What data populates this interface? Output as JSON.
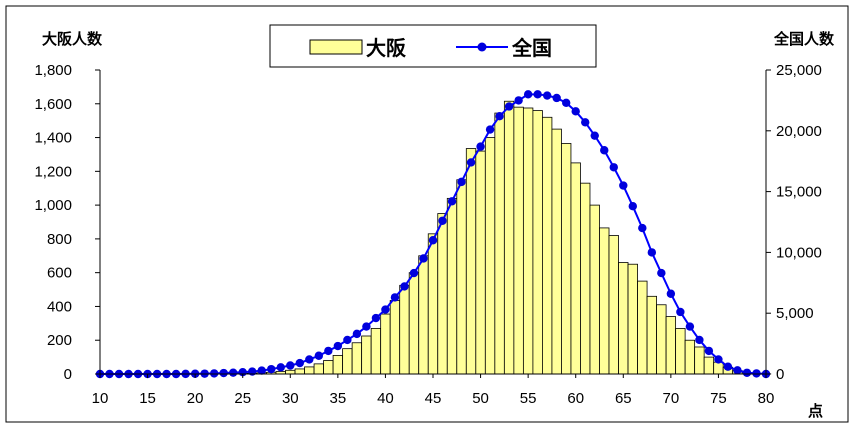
{
  "chart_data": {
    "type": "bar",
    "left_axis_label": "大阪人数",
    "right_axis_label": "全国人数",
    "x_unit": "点",
    "x_ticks": [
      10,
      15,
      20,
      25,
      30,
      35,
      40,
      45,
      50,
      55,
      60,
      65,
      70,
      75,
      80
    ],
    "x_range": [
      10,
      80
    ],
    "y_left_ticks": [
      "0",
      "200",
      "400",
      "600",
      "800",
      "1,000",
      "1,200",
      "1,400",
      "1,600",
      "1,800"
    ],
    "y_left_range": [
      0,
      1800
    ],
    "y_right_ticks": [
      "0",
      "5,000",
      "10,000",
      "15,000",
      "20,000",
      "25,000"
    ],
    "y_right_range": [
      0,
      25000
    ],
    "legend_position": "top-center",
    "colors": {
      "bar_fill": "#ffff99",
      "bar_stroke": "#000000",
      "line": "#0000ff",
      "marker": "#0000dd"
    },
    "series": [
      {
        "name": "大阪",
        "kind": "bar",
        "axis": "left",
        "x": [
          10,
          11,
          12,
          13,
          14,
          15,
          16,
          17,
          18,
          19,
          20,
          21,
          22,
          23,
          24,
          25,
          26,
          27,
          28,
          29,
          30,
          31,
          32,
          33,
          34,
          35,
          36,
          37,
          38,
          39,
          40,
          41,
          42,
          43,
          44,
          45,
          46,
          47,
          48,
          49,
          50,
          51,
          52,
          53,
          54,
          55,
          56,
          57,
          58,
          59,
          60,
          61,
          62,
          63,
          64,
          65,
          66,
          67,
          68,
          69,
          70,
          71,
          72,
          73,
          74,
          75,
          76,
          77,
          78,
          79,
          80
        ],
        "values": [
          0,
          0,
          0,
          0,
          0,
          0,
          0,
          0,
          0,
          0,
          0,
          0,
          1,
          1,
          2,
          3,
          5,
          7,
          10,
          15,
          22,
          30,
          42,
          60,
          80,
          110,
          150,
          185,
          225,
          270,
          355,
          435,
          525,
          600,
          700,
          830,
          950,
          1040,
          1150,
          1335,
          1320,
          1400,
          1545,
          1615,
          1580,
          1575,
          1560,
          1520,
          1450,
          1365,
          1250,
          1130,
          1000,
          865,
          820,
          660,
          650,
          550,
          460,
          410,
          340,
          270,
          200,
          160,
          100,
          70,
          40,
          20,
          8,
          3,
          1
        ]
      },
      {
        "name": "全国",
        "kind": "line",
        "axis": "right",
        "x": [
          10,
          11,
          12,
          13,
          14,
          15,
          16,
          17,
          18,
          19,
          20,
          21,
          22,
          23,
          24,
          25,
          26,
          27,
          28,
          29,
          30,
          31,
          32,
          33,
          34,
          35,
          36,
          37,
          38,
          39,
          40,
          41,
          42,
          43,
          44,
          45,
          46,
          47,
          48,
          49,
          50,
          51,
          52,
          53,
          54,
          55,
          56,
          57,
          58,
          59,
          60,
          61,
          62,
          63,
          64,
          65,
          66,
          67,
          68,
          69,
          70,
          71,
          72,
          73,
          74,
          75,
          76,
          77,
          78,
          79,
          80
        ],
        "values": [
          0,
          0,
          0,
          0,
          0,
          0,
          0,
          0,
          0,
          10,
          20,
          30,
          50,
          80,
          110,
          150,
          200,
          280,
          400,
          550,
          700,
          900,
          1200,
          1500,
          1900,
          2300,
          2800,
          3300,
          3900,
          4600,
          5300,
          6300,
          7200,
          8300,
          9500,
          11000,
          12600,
          14200,
          15800,
          17400,
          18700,
          20100,
          21200,
          22000,
          22500,
          23000,
          23000,
          22900,
          22700,
          22300,
          21600,
          20700,
          19600,
          18400,
          17000,
          15500,
          13800,
          12000,
          10000,
          8300,
          6600,
          5100,
          3900,
          2800,
          1900,
          1200,
          600,
          300,
          100,
          50,
          0
        ]
      }
    ]
  }
}
